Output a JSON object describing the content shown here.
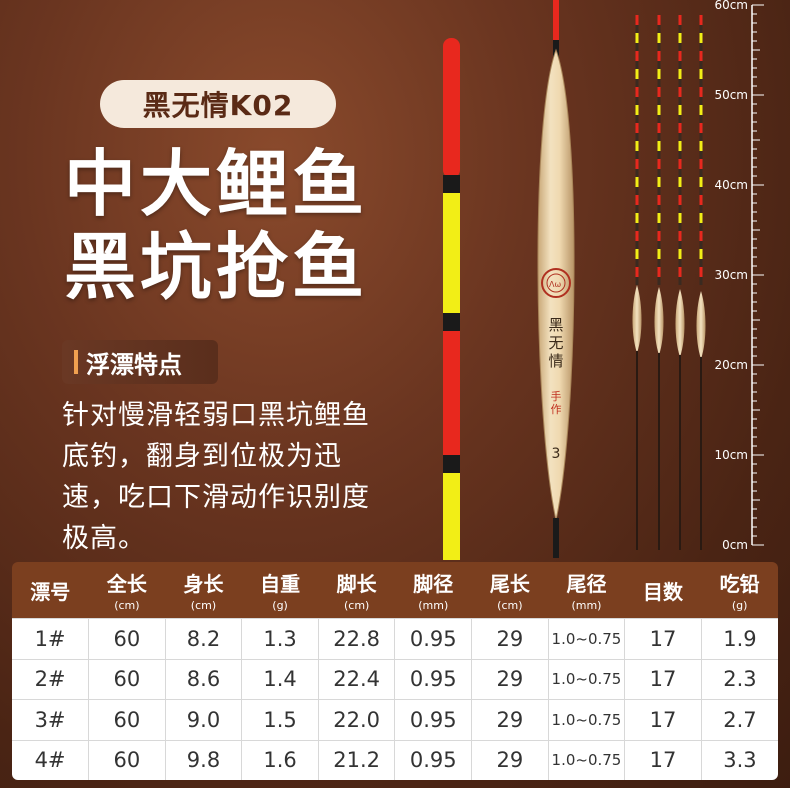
{
  "product": {
    "badge": "黑无情K02",
    "headline_line1": "中大鲤鱼",
    "headline_line2": "黑坑抢鱼",
    "features_title": "浮漂特点",
    "description": "针对慢滑轻弱口黑坑鲤鱼底钓，翻身到位极为迅速，吃口下滑动作识别度极高。"
  },
  "float_body_text": {
    "name_vertical": "黑无情",
    "handmade": "手作",
    "number": "3"
  },
  "ruler": {
    "labels": [
      "60cm",
      "50cm",
      "40cm",
      "30cm",
      "20cm",
      "10cm",
      "0cm"
    ]
  },
  "colors": {
    "background": "#5a2c18",
    "badge_bg": "#f5e9dc",
    "table_header": "#7b3f1f",
    "tail_red": "#e8281e",
    "tail_yellow": "#f2ee16",
    "body_wood": "#e8cfa0"
  },
  "table": {
    "headers": [
      {
        "label": "漂号",
        "unit": ""
      },
      {
        "label": "全长",
        "unit": "(cm)"
      },
      {
        "label": "身长",
        "unit": "(cm)"
      },
      {
        "label": "自重",
        "unit": "(g)"
      },
      {
        "label": "脚长",
        "unit": "(cm)"
      },
      {
        "label": "脚径",
        "unit": "(mm)"
      },
      {
        "label": "尾长",
        "unit": "(cm)"
      },
      {
        "label": "尾径",
        "unit": "(mm)"
      },
      {
        "label": "目数",
        "unit": ""
      },
      {
        "label": "吃铅",
        "unit": "(g)"
      }
    ],
    "rows": [
      [
        "1#",
        "60",
        "8.2",
        "1.3",
        "22.8",
        "0.95",
        "29",
        "1.0~0.75",
        "17",
        "1.9"
      ],
      [
        "2#",
        "60",
        "8.6",
        "1.4",
        "22.4",
        "0.95",
        "29",
        "1.0~0.75",
        "17",
        "2.3"
      ],
      [
        "3#",
        "60",
        "9.0",
        "1.5",
        "22.0",
        "0.95",
        "29",
        "1.0~0.75",
        "17",
        "2.7"
      ],
      [
        "4#",
        "60",
        "9.8",
        "1.6",
        "21.2",
        "0.95",
        "29",
        "1.0~0.75",
        "17",
        "3.3"
      ]
    ]
  }
}
